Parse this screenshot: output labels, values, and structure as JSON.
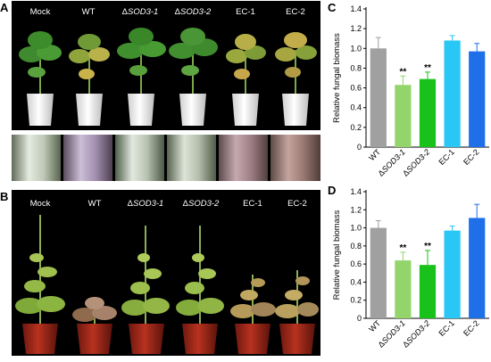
{
  "panels": {
    "a": {
      "letter": "A",
      "labels": [
        "Mock",
        "WT",
        "ΔSOD3-1",
        "ΔSOD3-2",
        "EC-1",
        "EC-2"
      ]
    },
    "b": {
      "letter": "B",
      "labels": [
        "Mock",
        "WT",
        "ΔSOD3-1",
        "ΔSOD3-2",
        "EC-1",
        "EC-2"
      ]
    },
    "c": {
      "letter": "C"
    },
    "d": {
      "letter": "D"
    }
  },
  "colors": {
    "gray": "#a0a0a0",
    "light_green": "#93d56a",
    "green": "#18c21b",
    "cyan": "#29c7f5",
    "blue": "#1f6fe9"
  },
  "chart_data": [
    {
      "type": "bar",
      "panel": "C",
      "categories": [
        "WT",
        "ΔSOD3-1",
        "ΔSOD3-2",
        "EC-1",
        "EC-2"
      ],
      "values": [
        1.0,
        0.63,
        0.69,
        1.08,
        0.97
      ],
      "errors": [
        0.11,
        0.09,
        0.07,
        0.05,
        0.08
      ],
      "significance": [
        "",
        "**",
        "**",
        "",
        ""
      ],
      "colors": [
        "#a0a0a0",
        "#93d56a",
        "#18c21b",
        "#29c7f5",
        "#1f6fe9"
      ],
      "ylabel": "Relative fungal biomass",
      "ylim": [
        0,
        1.4
      ],
      "yticks": [
        "0",
        "0.2",
        "0.4",
        "0.6",
        "0.8",
        "1.0",
        "1.2",
        "1.4"
      ],
      "grid": false
    },
    {
      "type": "bar",
      "panel": "D",
      "categories": [
        "WT",
        "ΔSOD3-1",
        "ΔSOD3-2",
        "EC-1",
        "EC-2"
      ],
      "values": [
        1.0,
        0.64,
        0.59,
        0.97,
        1.11
      ],
      "errors": [
        0.08,
        0.09,
        0.16,
        0.05,
        0.15
      ],
      "significance": [
        "",
        "**",
        "**",
        "",
        ""
      ],
      "colors": [
        "#a0a0a0",
        "#93d56a",
        "#18c21b",
        "#29c7f5",
        "#1f6fe9"
      ],
      "ylabel": "Relative fungal biomass",
      "ylim": [
        0,
        1.4
      ],
      "yticks": [
        "0",
        "0.2",
        "0.4",
        "0.6",
        "0.8",
        "1.0",
        "1.2",
        "1.4"
      ],
      "grid": false
    }
  ]
}
